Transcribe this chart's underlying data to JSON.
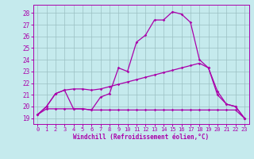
{
  "background_color": "#c5eaed",
  "line_color": "#aa00aa",
  "xlim": [
    -0.5,
    23.5
  ],
  "ylim": [
    18.5,
    28.7
  ],
  "xlabel": "Windchill (Refroidissement éolien,°C)",
  "xtick_labels": [
    "0",
    "1",
    "2",
    "3",
    "4",
    "5",
    "6",
    "7",
    "8",
    "9",
    "10",
    "11",
    "12",
    "13",
    "14",
    "15",
    "16",
    "17",
    "18",
    "19",
    "20",
    "21",
    "22",
    "23"
  ],
  "ytick_values": [
    19,
    20,
    21,
    22,
    23,
    24,
    25,
    26,
    27,
    28
  ],
  "grid_color": "#9bbfc2",
  "line1_x": [
    0,
    1,
    2,
    3,
    4,
    5,
    6,
    7,
    8,
    9,
    10,
    11,
    12,
    13,
    14,
    15,
    16,
    17,
    18,
    19,
    20,
    21,
    22,
    23
  ],
  "line1_y": [
    19.3,
    20.0,
    21.1,
    21.4,
    19.8,
    19.8,
    19.7,
    20.8,
    21.1,
    23.3,
    23.0,
    25.5,
    26.1,
    27.4,
    27.4,
    28.1,
    27.9,
    27.2,
    24.0,
    23.3,
    21.0,
    20.2,
    20.0,
    19.0
  ],
  "line2_x": [
    0,
    1,
    2,
    3,
    4,
    5,
    6,
    7,
    8,
    9,
    10,
    11,
    12,
    13,
    14,
    15,
    16,
    17,
    18,
    19,
    20,
    21,
    22,
    23
  ],
  "line2_y": [
    19.3,
    20.0,
    21.1,
    21.4,
    21.5,
    21.5,
    21.4,
    21.5,
    21.7,
    21.9,
    22.1,
    22.3,
    22.5,
    22.7,
    22.9,
    23.1,
    23.3,
    23.5,
    23.7,
    23.3,
    21.3,
    20.2,
    20.0,
    19.0
  ],
  "line3_x": [
    0,
    1,
    2,
    3,
    4,
    5,
    6,
    7,
    8,
    9,
    10,
    11,
    12,
    13,
    14,
    15,
    16,
    17,
    18,
    19,
    20,
    21,
    22,
    23
  ],
  "line3_y": [
    19.3,
    19.8,
    19.8,
    19.8,
    19.8,
    19.8,
    19.7,
    19.7,
    19.7,
    19.7,
    19.7,
    19.7,
    19.7,
    19.7,
    19.7,
    19.7,
    19.7,
    19.7,
    19.7,
    19.7,
    19.7,
    19.7,
    19.7,
    19.0
  ]
}
